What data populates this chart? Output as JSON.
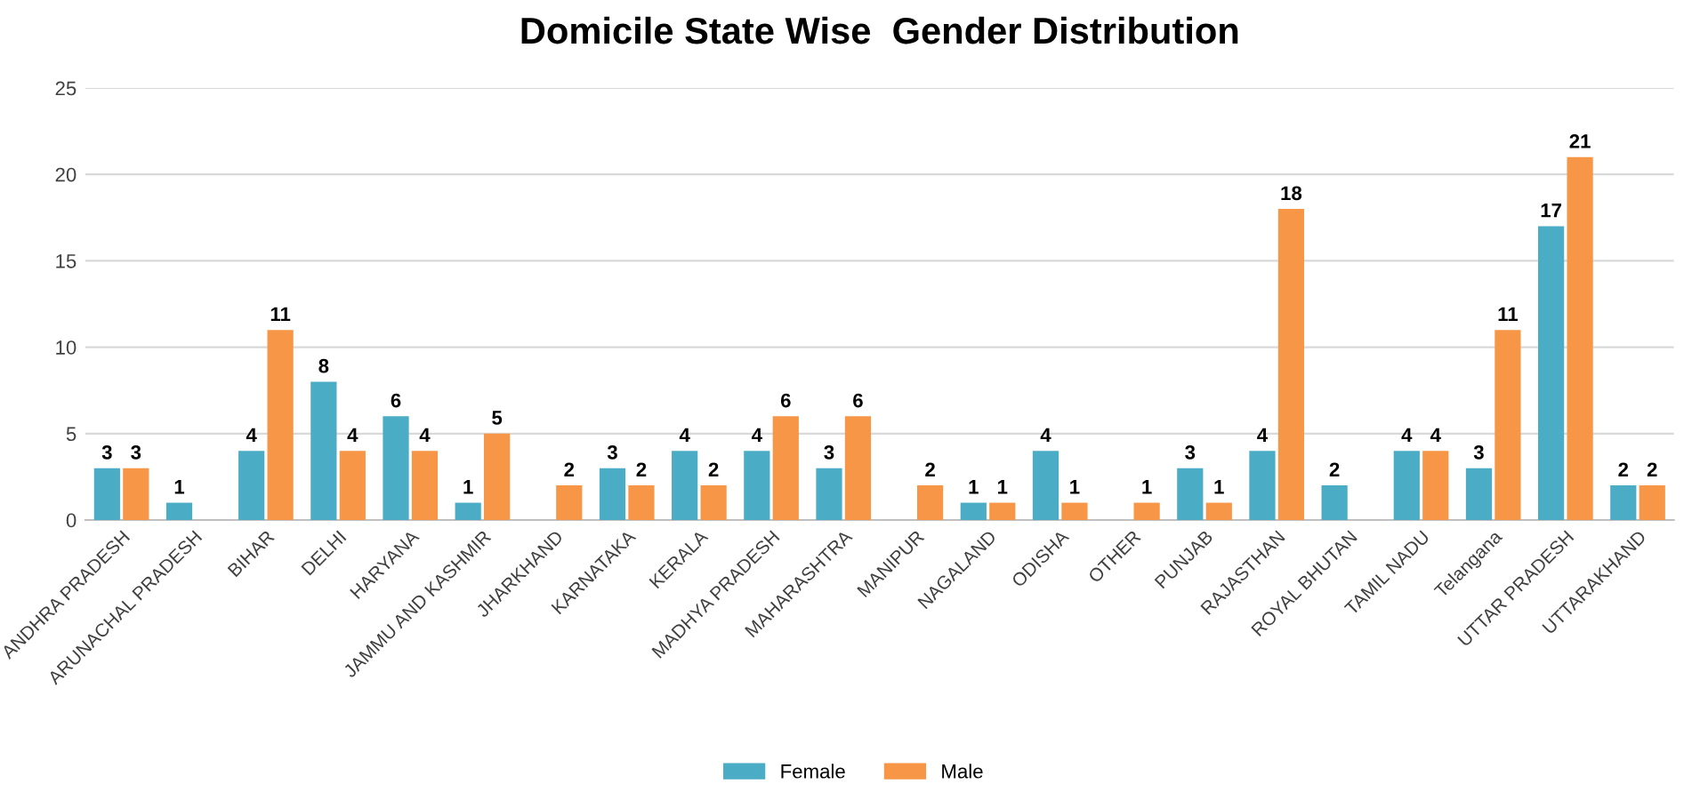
{
  "chart_data": {
    "type": "bar",
    "title": "Domicile State Wise  Gender Distribution",
    "categories": [
      "ANDHRA PRADESH",
      "ARUNACHAL PRADESH",
      "BIHAR",
      "DELHI",
      "HARYANA",
      "JAMMU AND KASHMIR",
      "JHARKHAND",
      "KARNATAKA",
      "KERALA",
      "MADHYA PRADESH",
      "MAHARASHTRA",
      "MANIPUR",
      "NAGALAND",
      "ODISHA",
      "OTHER",
      "PUNJAB",
      "RAJASTHAN",
      "ROYAL BHUTAN",
      "TAMIL NADU",
      "Telangana",
      "UTTAR PRADESH",
      "UTTARAKHAND"
    ],
    "series": [
      {
        "name": "Female",
        "color": "#4bacc6",
        "values": [
          3,
          1,
          4,
          8,
          6,
          1,
          null,
          3,
          4,
          4,
          3,
          null,
          1,
          4,
          null,
          3,
          4,
          2,
          4,
          3,
          17,
          2
        ]
      },
      {
        "name": "Male",
        "color": "#f79646",
        "values": [
          3,
          null,
          11,
          4,
          4,
          5,
          2,
          2,
          2,
          6,
          6,
          2,
          1,
          1,
          1,
          1,
          18,
          null,
          4,
          11,
          21,
          2
        ]
      }
    ],
    "ylim": [
      0,
      25
    ],
    "yticks": [
      0,
      5,
      10,
      15,
      20,
      25
    ],
    "grid": "y",
    "legend": "bottom",
    "data_labels": true
  }
}
